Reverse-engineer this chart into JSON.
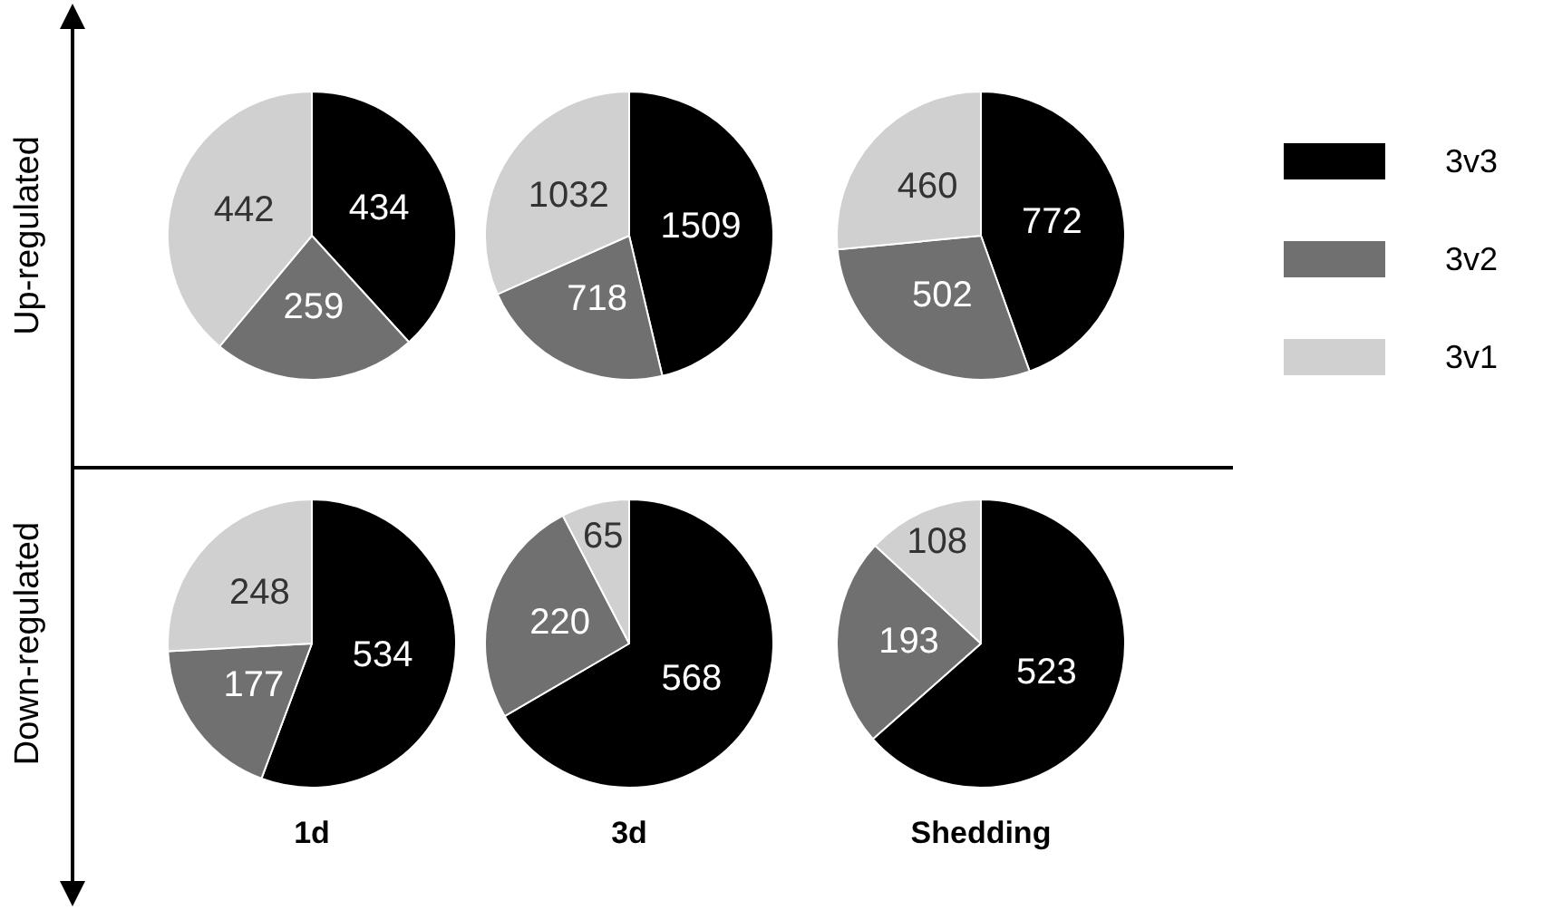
{
  "chart_data": [
    {
      "type": "pie",
      "ylabel": "Up-regulated",
      "categories": [
        null,
        null,
        null
      ],
      "values": [
        434,
        259,
        442
      ],
      "colors": [
        "#000000",
        "#707070",
        "#d0d0d0"
      ],
      "data_labels": true
    },
    {
      "type": "pie",
      "categories": [
        null,
        null,
        null
      ],
      "values": [
        1509,
        718,
        1032
      ],
      "colors": [
        "#000000",
        "#707070",
        "#d0d0d0"
      ],
      "data_labels": true
    },
    {
      "type": "pie",
      "legend": "right",
      "categories": [
        "3v3",
        "3v2",
        "3v1"
      ],
      "values": [
        772,
        502,
        460
      ],
      "colors": [
        "#000000",
        "#707070",
        "#d0d0d0"
      ],
      "data_labels": true
    },
    {
      "type": "pie",
      "ylabel": "Down-regulated",
      "xlabel": "1d",
      "categories": [
        null,
        null,
        null
      ],
      "values": [
        534,
        177,
        248
      ],
      "colors": [
        "#000000",
        "#707070",
        "#d0d0d0"
      ],
      "data_labels": true
    },
    {
      "type": "pie",
      "xlabel": "3d",
      "categories": [
        null,
        null,
        null
      ],
      "values": [
        568,
        220,
        65
      ],
      "colors": [
        "#000000",
        "#707070",
        "#d0d0d0"
      ],
      "data_labels": true
    },
    {
      "type": "pie",
      "xlabel": "Shedding",
      "categories": [
        null,
        null,
        null
      ],
      "values": [
        523,
        193,
        108
      ],
      "colors": [
        "#000000",
        "#707070",
        "#d0d0d0"
      ],
      "data_labels": true
    }
  ]
}
